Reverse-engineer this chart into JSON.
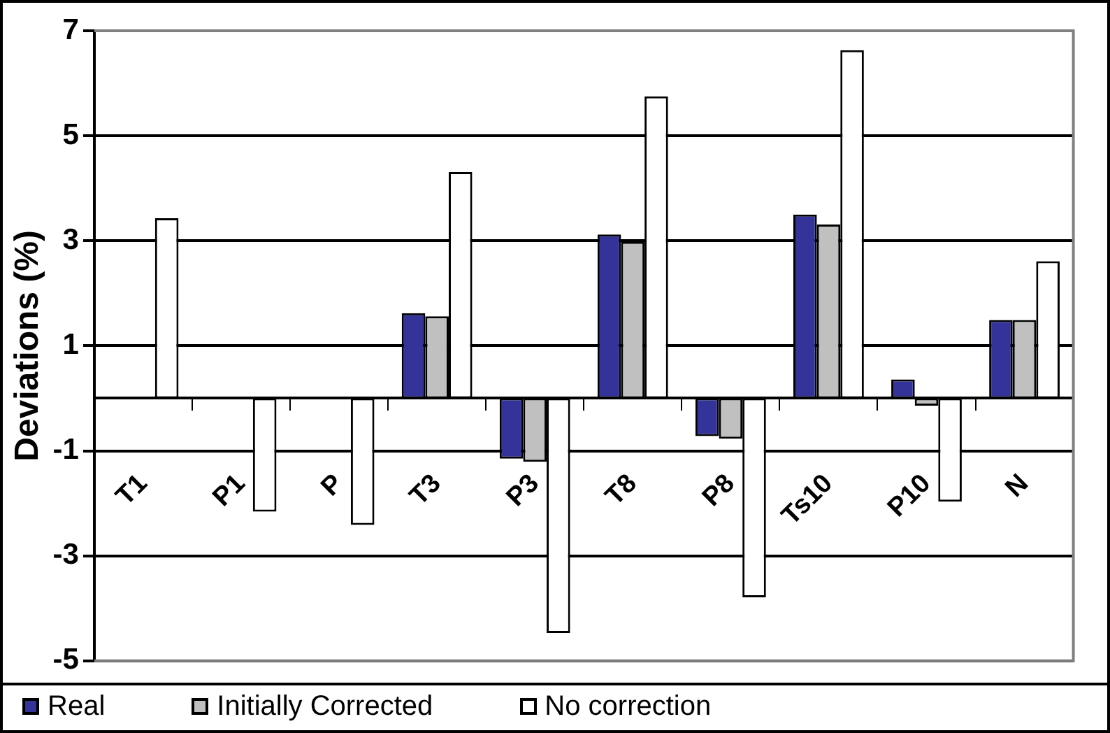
{
  "chart_data": {
    "type": "bar",
    "ylabel": "Deviations (%)",
    "categories": [
      "T1",
      "P1",
      "P",
      "T3",
      "P3",
      "T8",
      "P8",
      "Ts10",
      "P10",
      "N"
    ],
    "series": [
      {
        "name": "Real",
        "color": "#333399",
        "values": [
          0,
          0,
          0,
          1.62,
          -1.15,
          3.12,
          -0.72,
          3.5,
          0.36,
          1.49
        ]
      },
      {
        "name": "Initially Corrected",
        "color": "#c0c0c0",
        "values": [
          0,
          0,
          0,
          1.56,
          -1.21,
          2.98,
          -0.77,
          3.31,
          -0.14,
          1.49
        ]
      },
      {
        "name": "No correction",
        "color": "#ffffff",
        "values": [
          3.43,
          -2.16,
          -2.41,
          4.31,
          -4.47,
          5.75,
          -3.79,
          6.63,
          -1.97,
          2.61
        ]
      }
    ],
    "ylim": [
      -5,
      7
    ],
    "yticks": [
      -5,
      -3,
      -1,
      1,
      3,
      5,
      7
    ],
    "grid": "y",
    "legend": "bottom"
  }
}
